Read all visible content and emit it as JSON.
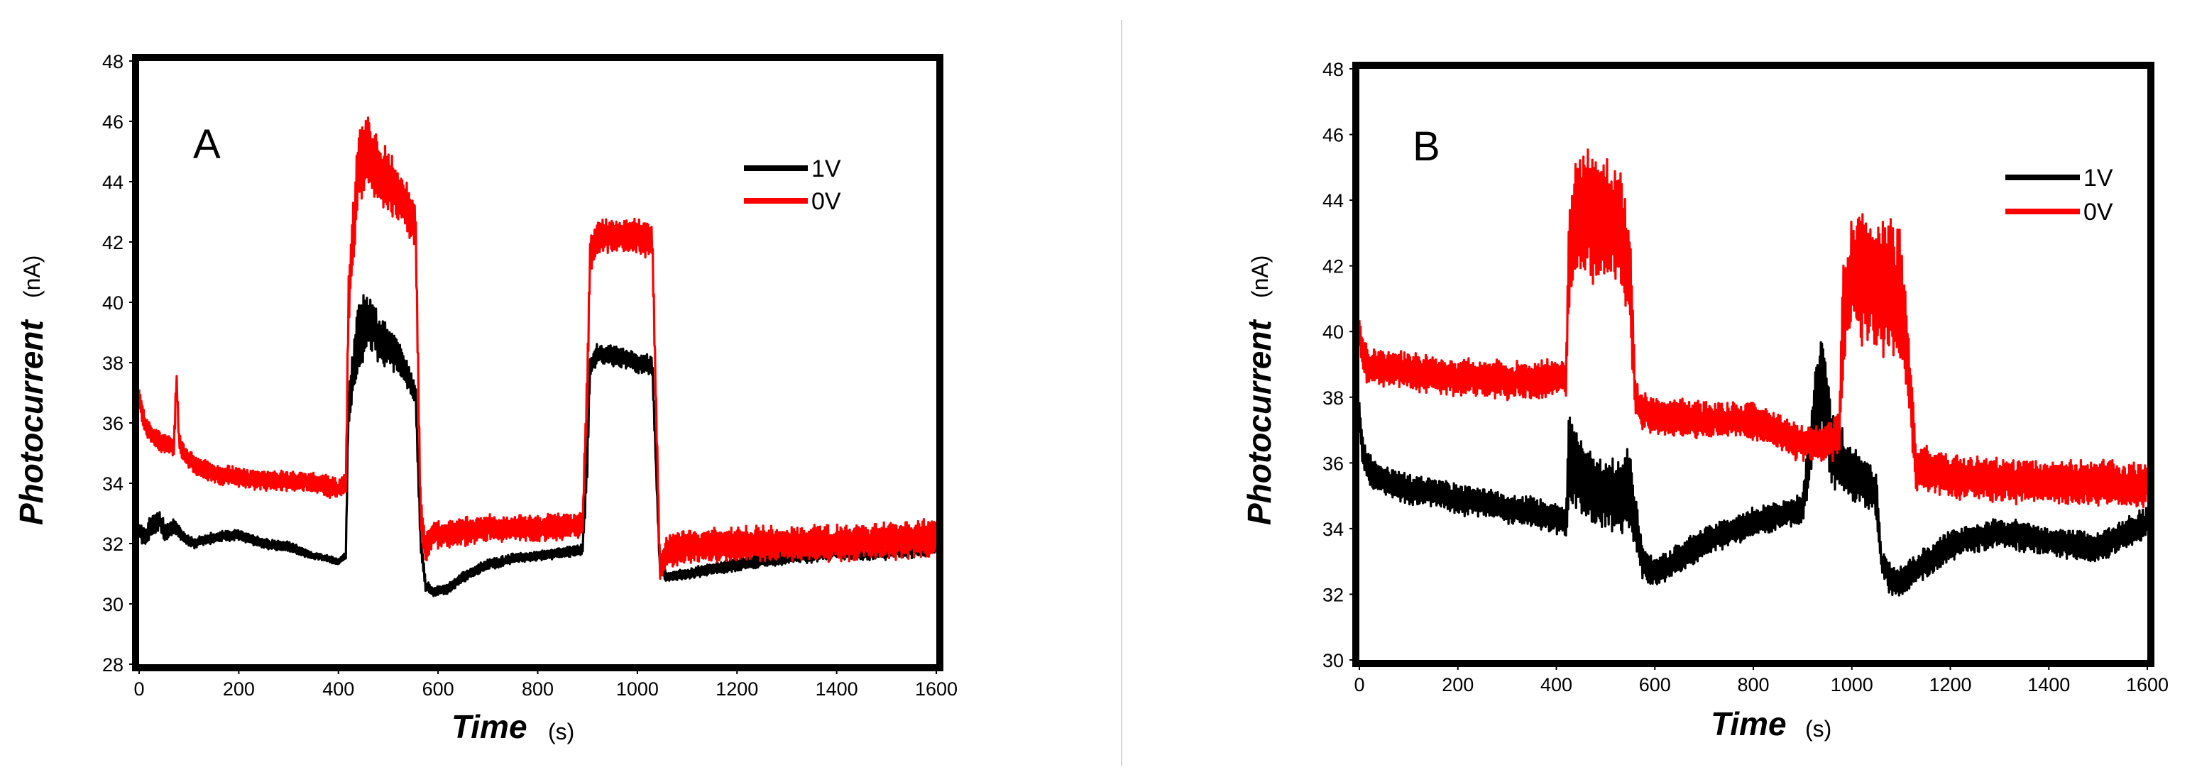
{
  "colors": {
    "v1": "#000000",
    "v0": "#ff0000",
    "divider": "#d4d4d4"
  },
  "chart_data": [
    {
      "panel": "A",
      "type": "line",
      "xlabel": "Time",
      "xunit": "(s)",
      "ylabel": "Photocurrent",
      "yunit": "(nA)",
      "xlim": [
        0,
        1600
      ],
      "ylim": [
        28,
        48
      ],
      "xticks": [
        "0",
        "200",
        "400",
        "600",
        "800",
        "1000",
        "1200",
        "1400",
        "1600"
      ],
      "yticks": [
        "28",
        "30",
        "32",
        "34",
        "36",
        "38",
        "40",
        "42",
        "44",
        "46",
        "48"
      ],
      "legend_position": "top-right",
      "series": [
        {
          "name": "1V",
          "color": "#000000",
          "x": [
            0,
            10,
            25,
            40,
            55,
            70,
            90,
            110,
            150,
            200,
            250,
            300,
            350,
            380,
            400,
            415,
            420,
            440,
            460,
            480,
            500,
            520,
            540,
            555,
            565,
            575,
            590,
            620,
            650,
            700,
            750,
            800,
            850,
            890,
            900,
            905,
            920,
            960,
            1000,
            1030,
            1045,
            1060,
            1100,
            1200,
            1300,
            1400,
            1500,
            1600
          ],
          "y": [
            32.5,
            32.2,
            32.6,
            32.8,
            32.3,
            32.6,
            32.2,
            32.0,
            32.2,
            32.3,
            32.0,
            31.9,
            31.6,
            31.5,
            31.4,
            31.6,
            36.5,
            38.8,
            39.5,
            38.8,
            38.5,
            38.2,
            37.5,
            37.0,
            32.0,
            30.6,
            30.4,
            30.5,
            30.9,
            31.3,
            31.5,
            31.6,
            31.7,
            31.8,
            35.0,
            37.8,
            38.3,
            38.2,
            38.0,
            37.9,
            31.2,
            30.9,
            31.0,
            31.3,
            31.6,
            31.8,
            31.8,
            32.0
          ],
          "noise": [
            0.6,
            0.6,
            0.7,
            0.6,
            0.5,
            0.5,
            0.3,
            0.3,
            0.3,
            0.3,
            0.3,
            0.3,
            0.2,
            0.2,
            0.2,
            0.2,
            1.2,
            2.2,
            1.8,
            1.5,
            1.2,
            1.0,
            0.8,
            0.6,
            0.8,
            0.3,
            0.3,
            0.3,
            0.3,
            0.3,
            0.3,
            0.3,
            0.3,
            0.3,
            1.5,
            0.6,
            0.6,
            0.6,
            0.6,
            0.6,
            0.5,
            0.3,
            0.3,
            0.4,
            0.5,
            0.6,
            0.6,
            0.7
          ]
        },
        {
          "name": "0V",
          "color": "#ff0000",
          "x": [
            0,
            10,
            25,
            40,
            55,
            70,
            75,
            80,
            90,
            110,
            150,
            200,
            250,
            300,
            350,
            380,
            400,
            415,
            420,
            440,
            460,
            480,
            500,
            520,
            540,
            555,
            565,
            575,
            590,
            620,
            650,
            700,
            750,
            800,
            850,
            890,
            900,
            905,
            920,
            960,
            1000,
            1030,
            1045,
            1060,
            1100,
            1200,
            1300,
            1400,
            1500,
            1600
          ],
          "y": [
            36.8,
            36.0,
            35.6,
            35.4,
            35.3,
            35.2,
            37.5,
            35.4,
            35.0,
            34.6,
            34.3,
            34.2,
            34.1,
            34.1,
            34.0,
            33.9,
            33.8,
            34.0,
            40.0,
            44.6,
            45.0,
            44.3,
            44.0,
            43.5,
            43.2,
            42.5,
            33.0,
            31.8,
            32.3,
            32.3,
            32.4,
            32.5,
            32.5,
            32.5,
            32.6,
            32.6,
            37.5,
            41.5,
            42.2,
            42.2,
            42.2,
            42.0,
            31.3,
            31.7,
            31.9,
            32.0,
            32.0,
            32.0,
            32.1,
            32.2
          ],
          "noise": [
            0.8,
            0.7,
            0.6,
            0.6,
            0.6,
            0.6,
            0.6,
            0.6,
            0.6,
            0.6,
            0.6,
            0.6,
            0.6,
            0.6,
            0.6,
            0.6,
            0.6,
            0.6,
            1.8,
            2.4,
            2.2,
            2.0,
            1.8,
            1.6,
            1.6,
            1.2,
            1.2,
            0.8,
            0.8,
            0.8,
            0.8,
            0.8,
            0.8,
            0.8,
            0.8,
            0.8,
            1.5,
            1.2,
            1.0,
            1.0,
            1.0,
            1.0,
            0.8,
            1.0,
            1.0,
            1.0,
            1.0,
            1.1,
            1.1,
            1.2
          ]
        }
      ]
    },
    {
      "panel": "B",
      "type": "line",
      "xlabel": "Time",
      "xunit": "(s)",
      "ylabel": "Photocurrent",
      "yunit": "(nA)",
      "xlim": [
        0,
        1600
      ],
      "ylim": [
        30,
        48
      ],
      "xticks": [
        "0",
        "200",
        "400",
        "600",
        "800",
        "1000",
        "1200",
        "1400",
        "1600"
      ],
      "yticks": [
        "30",
        "32",
        "34",
        "36",
        "38",
        "40",
        "42",
        "44",
        "46",
        "48"
      ],
      "legend_position": "top-right",
      "series": [
        {
          "name": "1V",
          "color": "#000000",
          "x": [
            0,
            5,
            15,
            30,
            60,
            100,
            150,
            200,
            250,
            300,
            350,
            400,
            420,
            425,
            440,
            470,
            500,
            530,
            550,
            560,
            575,
            590,
            620,
            700,
            800,
            900,
            920,
            940,
            960,
            990,
            1020,
            1050,
            1060,
            1080,
            1100,
            1200,
            1300,
            1400,
            1500,
            1600
          ],
          "y": [
            37.5,
            36.5,
            35.9,
            35.6,
            35.4,
            35.2,
            35.1,
            34.9,
            34.8,
            34.6,
            34.5,
            34.3,
            34.2,
            36.0,
            35.8,
            35.3,
            35.0,
            35.0,
            35.2,
            34.2,
            33.0,
            32.7,
            32.8,
            33.6,
            34.2,
            34.6,
            37.0,
            38.5,
            36.5,
            35.8,
            35.5,
            35.0,
            33.0,
            32.4,
            32.4,
            33.5,
            33.9,
            33.6,
            33.4,
            34.2
          ],
          "noise": [
            0.8,
            0.8,
            0.8,
            0.8,
            0.8,
            0.8,
            0.8,
            0.8,
            0.8,
            0.8,
            0.8,
            0.8,
            0.8,
            2.5,
            2.2,
            2.0,
            2.0,
            2.0,
            2.2,
            1.5,
            1.0,
            0.8,
            0.8,
            0.8,
            0.8,
            0.8,
            2.0,
            2.8,
            2.2,
            1.6,
            1.4,
            1.2,
            0.8,
            0.8,
            0.8,
            0.8,
            0.8,
            0.8,
            0.8,
            0.8
          ]
        },
        {
          "name": "0V",
          "color": "#ff0000",
          "x": [
            0,
            5,
            15,
            30,
            60,
            100,
            150,
            200,
            250,
            300,
            350,
            400,
            420,
            425,
            440,
            470,
            500,
            530,
            550,
            560,
            575,
            590,
            620,
            700,
            800,
            900,
            950,
            975,
            980,
            1000,
            1050,
            1100,
            1120,
            1130,
            1150,
            1200,
            1300,
            1400,
            1500,
            1600
          ],
          "y": [
            40.0,
            39.5,
            39.0,
            38.9,
            38.9,
            38.8,
            38.7,
            38.6,
            38.6,
            38.5,
            38.5,
            38.6,
            38.6,
            42.0,
            43.5,
            43.5,
            43.5,
            43.0,
            41.5,
            38.0,
            37.6,
            37.5,
            37.4,
            37.3,
            37.3,
            36.6,
            36.6,
            37.0,
            40.0,
            41.8,
            41.5,
            41.0,
            38.0,
            35.8,
            35.8,
            35.6,
            35.5,
            35.4,
            35.4,
            35.3
          ],
          "noise": [
            1.0,
            1.0,
            1.0,
            1.0,
            1.0,
            1.0,
            1.0,
            1.0,
            1.0,
            1.0,
            1.0,
            1.0,
            1.0,
            3.0,
            3.4,
            3.4,
            3.4,
            3.2,
            3.0,
            1.2,
            1.0,
            1.0,
            1.0,
            1.0,
            1.0,
            1.0,
            1.0,
            1.4,
            3.0,
            3.6,
            3.6,
            3.6,
            2.0,
            1.2,
            1.2,
            1.2,
            1.2,
            1.2,
            1.2,
            1.2
          ]
        }
      ]
    }
  ]
}
